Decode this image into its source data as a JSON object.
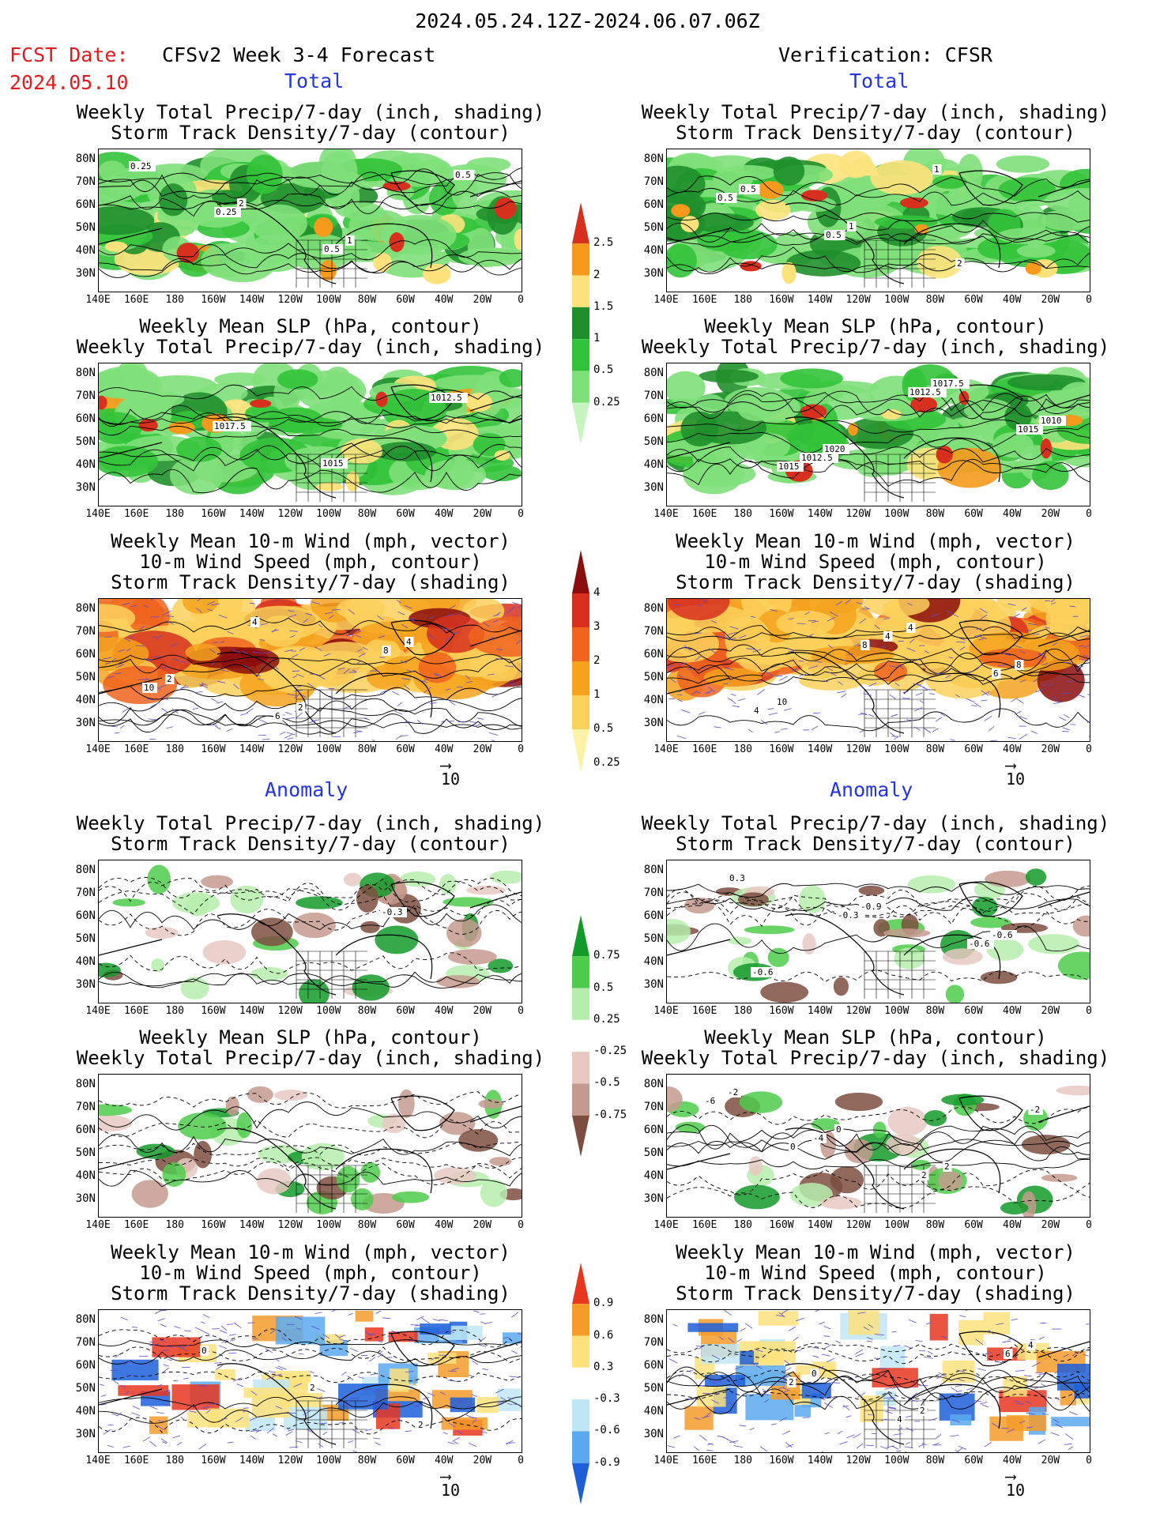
{
  "header": {
    "date_range": "2024.05.24.12Z-2024.06.07.06Z",
    "fcst_label": "FCST Date:",
    "fcst_date": "2024.05.10",
    "left_title": "CFSv2 Week 3-4 Forecast",
    "right_title": "Verification: CFSR"
  },
  "sections": {
    "total": "Total",
    "anomaly": "Anomaly"
  },
  "panel_titles": {
    "precip_storm": [
      "Weekly Total Precip/7-day (inch, shading)",
      "Storm Track Density/7-day (contour)"
    ],
    "slp_precip": [
      "Weekly Mean SLP (hPa, contour)",
      "Weekly Total Precip/7-day (inch, shading)"
    ],
    "wind": [
      "Weekly Mean 10-m Wind (mph, vector)",
      "10-m Wind Speed (mph, contour)",
      "Storm Track Density/7-day (shading)"
    ]
  },
  "axes": {
    "lat_ticks": [
      "80N",
      "70N",
      "60N",
      "50N",
      "40N",
      "30N"
    ],
    "lon_ticks": [
      "140E",
      "160E",
      "180",
      "160W",
      "140W",
      "120W",
      "100W",
      "80W",
      "60W",
      "40W",
      "20W",
      "0"
    ]
  },
  "vector_ref": "10",
  "colorbars": {
    "total_precip": {
      "labels": [
        "2.5",
        "2",
        "1.5",
        "1",
        "0.5",
        "0.25"
      ],
      "colors": [
        "#d7301f",
        "#f59a1c",
        "#fde27c",
        "#1f8f2b",
        "#33c33a",
        "#7fe07a",
        "#c8f4c1"
      ]
    },
    "total_storm": {
      "labels": [
        "4",
        "3",
        "2",
        "1",
        "0.5",
        "0.25"
      ],
      "colors": [
        "#8b0d0d",
        "#d7301f",
        "#f0641e",
        "#f5a31e",
        "#fbd15c",
        "#fdf3a8"
      ]
    },
    "anom_precip": {
      "labels": [
        "0.75",
        "0.5",
        "0.25",
        "-0.25",
        "-0.5",
        "-0.75"
      ],
      "colors": [
        "#139a29",
        "#4fcc4b",
        "#b6efad",
        "#ffffff",
        "#e7c9c2",
        "#c49a8e",
        "#7d4d40"
      ]
    },
    "anom_storm": {
      "labels": [
        "0.9",
        "0.6",
        "0.3",
        "-0.3",
        "-0.6",
        "-0.9"
      ],
      "colors": [
        "#e8361f",
        "#f59b2a",
        "#fde27c",
        "#ffffff",
        "#bfe6f5",
        "#5aa9ef",
        "#1b5fd9"
      ]
    }
  },
  "contour_labels": {
    "L1": [
      "0.25",
      "2",
      "1",
      "0.5",
      "0.25",
      "0.5"
    ],
    "R1": [
      "0.5",
      "1",
      "2",
      "0.5",
      "0.5",
      "1"
    ],
    "L2": [
      "1017.5",
      "1015",
      "1012.5"
    ],
    "R2": [
      "1020",
      "1017.5",
      "1010",
      "1012.5",
      "1012.5",
      "1015",
      "1015"
    ],
    "L3": [
      "2",
      "4",
      "2",
      "6",
      "8",
      "10",
      "4"
    ],
    "R3": [
      "4",
      "8",
      "10",
      "4",
      "6",
      "4",
      "8"
    ],
    "L4": [
      "-0.3"
    ],
    "R4": [
      "-0.6",
      "-0.6",
      "-0.9",
      "-0.6",
      "0.3",
      "-0.3"
    ],
    "R5": [
      "-2",
      "0",
      "2",
      "-6",
      "-4",
      "2",
      "-2",
      "0"
    ],
    "L6": [
      "0",
      "2",
      "2"
    ],
    "R6": [
      "0",
      "2",
      "4",
      "2",
      "4",
      "6"
    ]
  }
}
